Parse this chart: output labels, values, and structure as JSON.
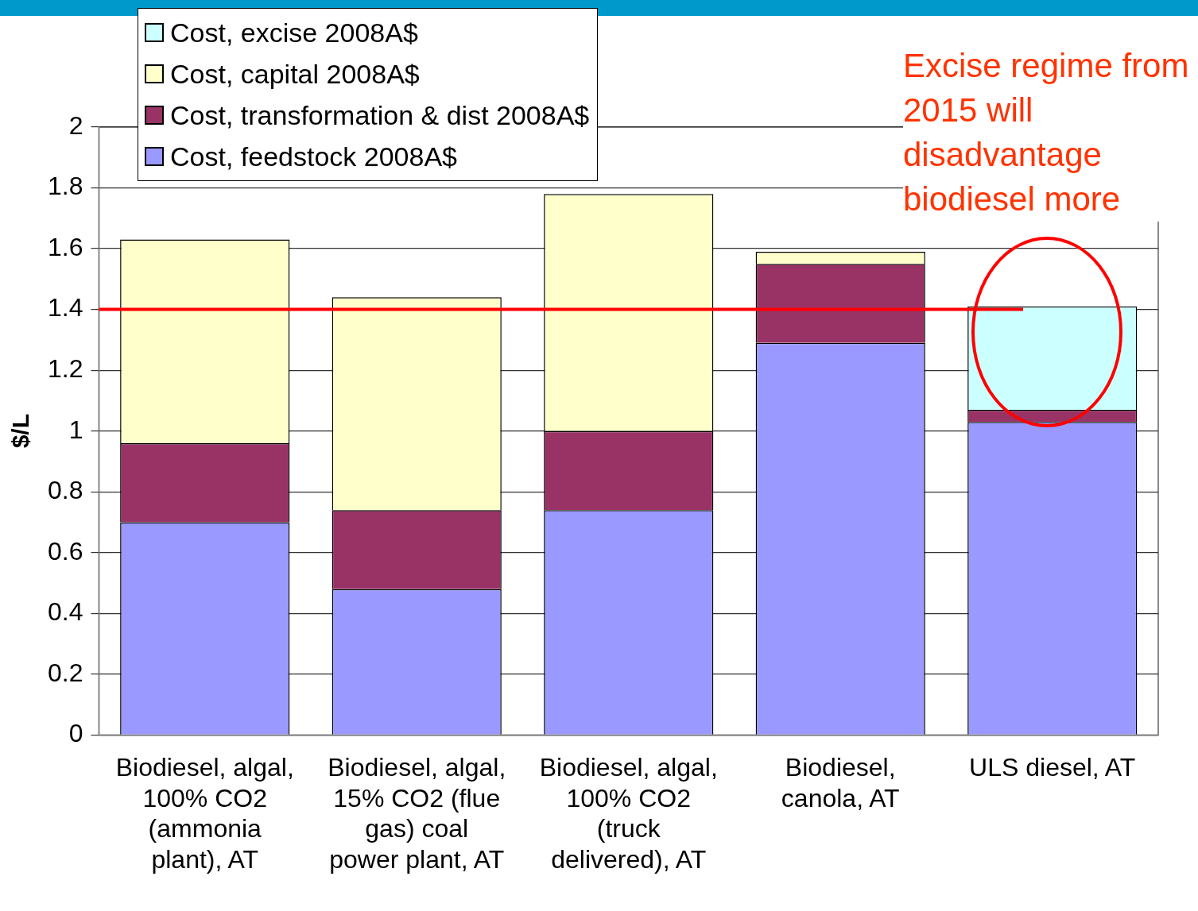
{
  "chart_data": {
    "type": "bar",
    "stacked": true,
    "categories": [
      "Biodiesel, algal, 100% CO2 (ammonia plant), AT",
      "Biodiesel, algal, 15% CO2 (flue gas) coal power plant, AT",
      "Biodiesel, algal, 100% CO2 (truck delivered), AT",
      "Biodiesel, canola, AT",
      "ULS diesel, AT"
    ],
    "ylabel": "$/L",
    "series": [
      {
        "name": "Cost, feedstock 2008A$",
        "color": "#9999ff",
        "values": [
          0.7,
          0.48,
          0.74,
          1.29,
          1.03
        ]
      },
      {
        "name": "Cost, transformation & dist 2008A$",
        "color": "#993366",
        "values": [
          0.26,
          0.26,
          0.26,
          0.26,
          0.04
        ]
      },
      {
        "name": "Cost, capital 2008A$",
        "color": "#ffffcc",
        "values": [
          0.67,
          0.7,
          0.78,
          0.04,
          0
        ]
      },
      {
        "name": "Cost, excise 2008A$",
        "color": "#ccffff",
        "values": [
          0,
          0,
          0,
          0,
          0.34
        ]
      }
    ],
    "ylim": [
      0,
      2
    ],
    "yticks": [
      0,
      0.2,
      0.4,
      0.6,
      0.8,
      1,
      1.2,
      1.4,
      1.6,
      1.8,
      2
    ],
    "grid": "y",
    "legend": "top left",
    "ref_lines": [
      {
        "axis": "y",
        "value": 1.4,
        "color": "#ff0000"
      }
    ],
    "annotations": [
      "Excise regime from 2015 will disadvantage biodiesel more"
    ]
  }
}
